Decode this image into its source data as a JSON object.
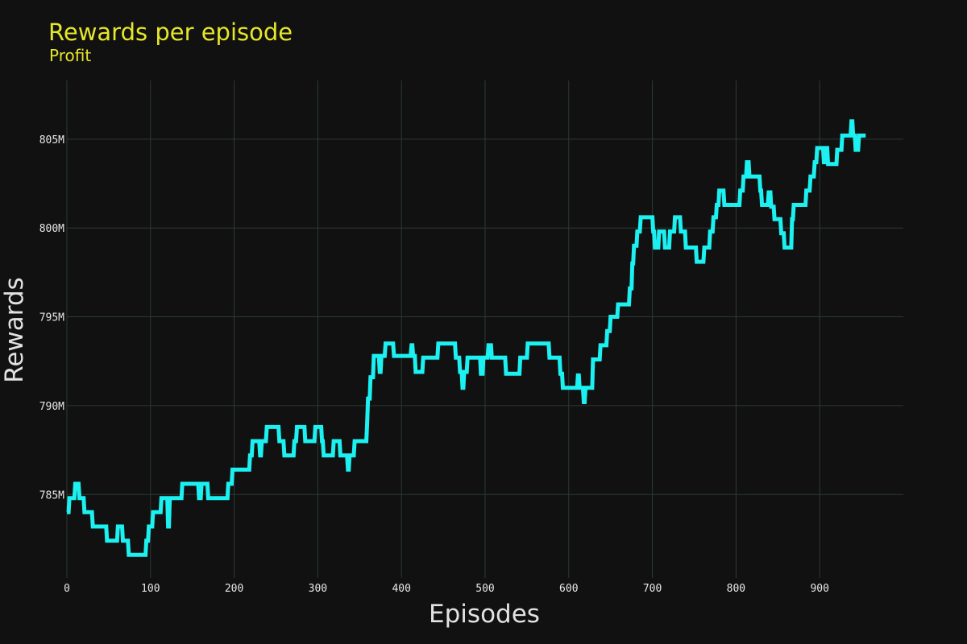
{
  "colors": {
    "background": "#111111",
    "title": "#e6e62a",
    "line": "#1cf0f0",
    "grid": "#2c3a34",
    "text": "#e8e8e8"
  },
  "chart_data": {
    "type": "line",
    "title": "Rewards per episode",
    "subtitle": "Profit",
    "xlabel": "Episodes",
    "ylabel": "Rewards",
    "xlim": [
      0,
      1000
    ],
    "ylim": [
      780.3,
      808.3
    ],
    "grid": true,
    "x_ticks": [
      {
        "value": 0,
        "label": "0"
      },
      {
        "value": 100,
        "label": "100"
      },
      {
        "value": 200,
        "label": "200"
      },
      {
        "value": 300,
        "label": "300"
      },
      {
        "value": 400,
        "label": "400"
      },
      {
        "value": 500,
        "label": "500"
      },
      {
        "value": 600,
        "label": "600"
      },
      {
        "value": 700,
        "label": "700"
      },
      {
        "value": 800,
        "label": "800"
      },
      {
        "value": 900,
        "label": "900"
      }
    ],
    "y_ticks": [
      {
        "value": 785,
        "label": "785M"
      },
      {
        "value": 790,
        "label": "790M"
      },
      {
        "value": 795,
        "label": "795M"
      },
      {
        "value": 800,
        "label": "800M"
      },
      {
        "value": 805,
        "label": "805M"
      }
    ],
    "series": [
      {
        "color": "#1cf0f0",
        "points": [
          [
            0,
            784.0
          ],
          [
            2,
            784.0
          ],
          [
            3,
            784.8
          ],
          [
            9,
            784.8
          ],
          [
            10,
            785.6
          ],
          [
            14,
            785.6
          ],
          [
            15,
            784.8
          ],
          [
            20,
            784.8
          ],
          [
            21,
            784.0
          ],
          [
            30,
            784.0
          ],
          [
            31,
            783.2
          ],
          [
            47,
            783.2
          ],
          [
            48,
            782.4
          ],
          [
            60,
            782.4
          ],
          [
            61,
            783.2
          ],
          [
            66,
            783.2
          ],
          [
            67,
            782.4
          ],
          [
            73,
            782.4
          ],
          [
            74,
            781.6
          ],
          [
            94,
            781.6
          ],
          [
            95,
            782.4
          ],
          [
            97,
            782.4
          ],
          [
            98,
            783.2
          ],
          [
            102,
            783.2
          ],
          [
            103,
            784.0
          ],
          [
            112,
            784.0
          ],
          [
            113,
            784.8
          ],
          [
            120,
            784.8
          ],
          [
            121,
            783.2
          ],
          [
            122,
            783.2
          ],
          [
            123,
            784.8
          ],
          [
            137,
            784.8
          ],
          [
            138,
            785.6
          ],
          [
            157,
            785.6
          ],
          [
            158,
            784.8
          ],
          [
            160,
            784.8
          ],
          [
            161,
            785.6
          ],
          [
            168,
            785.6
          ],
          [
            169,
            784.8
          ],
          [
            192,
            784.8
          ],
          [
            193,
            785.6
          ],
          [
            197,
            785.6
          ],
          [
            198,
            786.4
          ],
          [
            218,
            786.4
          ],
          [
            219,
            787.2
          ],
          [
            221,
            787.2
          ],
          [
            222,
            788.0
          ],
          [
            230,
            788.0
          ],
          [
            231,
            787.2
          ],
          [
            232,
            787.2
          ],
          [
            233,
            788.0
          ],
          [
            238,
            788.0
          ],
          [
            239,
            788.8
          ],
          [
            253,
            788.8
          ],
          [
            254,
            788.0
          ],
          [
            259,
            788.0
          ],
          [
            260,
            787.2
          ],
          [
            271,
            787.2
          ],
          [
            272,
            788.0
          ],
          [
            274,
            788.0
          ],
          [
            275,
            788.8
          ],
          [
            284,
            788.8
          ],
          [
            285,
            788.0
          ],
          [
            296,
            788.0
          ],
          [
            297,
            788.8
          ],
          [
            304,
            788.8
          ],
          [
            305,
            788.0
          ],
          [
            306,
            788.0
          ],
          [
            307,
            787.2
          ],
          [
            318,
            787.2
          ],
          [
            319,
            788.0
          ],
          [
            326,
            788.0
          ],
          [
            327,
            787.2
          ],
          [
            335,
            787.2
          ],
          [
            336,
            786.4
          ],
          [
            337,
            786.4
          ],
          [
            338,
            787.2
          ],
          [
            343,
            787.2
          ],
          [
            344,
            788.0
          ],
          [
            358,
            788.0
          ],
          [
            359,
            789.0
          ],
          [
            360,
            790.4
          ],
          [
            362,
            790.4
          ],
          [
            363,
            791.6
          ],
          [
            366,
            791.6
          ],
          [
            367,
            792.8
          ],
          [
            373,
            792.8
          ],
          [
            374,
            791.9
          ],
          [
            375,
            791.9
          ],
          [
            376,
            792.8
          ],
          [
            380,
            792.8
          ],
          [
            381,
            793.5
          ],
          [
            390,
            793.5
          ],
          [
            391,
            792.8
          ],
          [
            411,
            792.8
          ],
          [
            412,
            793.4
          ],
          [
            413,
            793.4
          ],
          [
            414,
            792.8
          ],
          [
            416,
            792.8
          ],
          [
            417,
            791.9
          ],
          [
            425,
            791.9
          ],
          [
            426,
            792.7
          ],
          [
            443,
            792.7
          ],
          [
            444,
            793.5
          ],
          [
            464,
            793.5
          ],
          [
            465,
            792.7
          ],
          [
            469,
            792.7
          ],
          [
            470,
            791.9
          ],
          [
            472,
            791.9
          ],
          [
            473,
            791.0
          ],
          [
            474,
            791.0
          ],
          [
            475,
            791.9
          ],
          [
            478,
            791.9
          ],
          [
            479,
            792.7
          ],
          [
            494,
            792.7
          ],
          [
            495,
            791.8
          ],
          [
            497,
            791.8
          ],
          [
            498,
            792.7
          ],
          [
            503,
            792.7
          ],
          [
            504,
            793.4
          ],
          [
            507,
            793.4
          ],
          [
            508,
            792.7
          ],
          [
            524,
            792.7
          ],
          [
            525,
            791.8
          ],
          [
            541,
            791.8
          ],
          [
            542,
            792.7
          ],
          [
            550,
            792.7
          ],
          [
            551,
            793.5
          ],
          [
            576,
            793.5
          ],
          [
            577,
            792.7
          ],
          [
            589,
            792.7
          ],
          [
            590,
            791.8
          ],
          [
            592,
            791.8
          ],
          [
            593,
            791.0
          ],
          [
            610,
            791.0
          ],
          [
            611,
            791.7
          ],
          [
            612,
            791.7
          ],
          [
            613,
            791.0
          ],
          [
            617,
            791.0
          ],
          [
            618,
            790.2
          ],
          [
            619,
            790.2
          ],
          [
            620,
            791.0
          ],
          [
            628,
            791.0
          ],
          [
            629,
            792.6
          ],
          [
            637,
            792.6
          ],
          [
            638,
            793.4
          ],
          [
            645,
            793.4
          ],
          [
            646,
            794.2
          ],
          [
            649,
            794.2
          ],
          [
            650,
            795.0
          ],
          [
            658,
            795.0
          ],
          [
            659,
            795.7
          ],
          [
            672,
            795.7
          ],
          [
            673,
            796.6
          ],
          [
            675,
            796.6
          ],
          [
            676,
            798.0
          ],
          [
            677,
            798.0
          ],
          [
            678,
            799.0
          ],
          [
            681,
            799.0
          ],
          [
            682,
            799.8
          ],
          [
            685,
            799.8
          ],
          [
            686,
            800.6
          ],
          [
            700,
            800.6
          ],
          [
            701,
            799.8
          ],
          [
            702,
            799.8
          ],
          [
            703,
            798.9
          ],
          [
            707,
            798.9
          ],
          [
            708,
            799.8
          ],
          [
            714,
            799.8
          ],
          [
            715,
            798.9
          ],
          [
            720,
            798.9
          ],
          [
            721,
            799.8
          ],
          [
            726,
            799.8
          ],
          [
            727,
            800.6
          ],
          [
            733,
            800.6
          ],
          [
            734,
            799.8
          ],
          [
            739,
            799.8
          ],
          [
            740,
            798.9
          ],
          [
            752,
            798.9
          ],
          [
            753,
            798.1
          ],
          [
            761,
            798.1
          ],
          [
            762,
            798.9
          ],
          [
            768,
            798.9
          ],
          [
            769,
            799.8
          ],
          [
            772,
            799.8
          ],
          [
            773,
            800.6
          ],
          [
            776,
            800.6
          ],
          [
            777,
            801.3
          ],
          [
            779,
            801.3
          ],
          [
            780,
            802.1
          ],
          [
            785,
            802.1
          ],
          [
            786,
            801.3
          ],
          [
            804,
            801.3
          ],
          [
            805,
            802.1
          ],
          [
            808,
            802.1
          ],
          [
            809,
            802.9
          ],
          [
            812,
            802.9
          ],
          [
            813,
            803.7
          ],
          [
            815,
            803.7
          ],
          [
            816,
            802.9
          ],
          [
            828,
            802.9
          ],
          [
            829,
            802.1
          ],
          [
            830,
            802.1
          ],
          [
            831,
            801.3
          ],
          [
            838,
            801.3
          ],
          [
            839,
            802.0
          ],
          [
            841,
            802.0
          ],
          [
            842,
            801.2
          ],
          [
            845,
            801.2
          ],
          [
            846,
            800.5
          ],
          [
            853,
            800.5
          ],
          [
            854,
            799.7
          ],
          [
            857,
            799.7
          ],
          [
            858,
            798.9
          ],
          [
            866,
            798.9
          ],
          [
            867,
            800.5
          ],
          [
            868,
            800.5
          ],
          [
            869,
            801.3
          ],
          [
            883,
            801.3
          ],
          [
            884,
            802.1
          ],
          [
            888,
            802.1
          ],
          [
            889,
            802.9
          ],
          [
            893,
            802.9
          ],
          [
            894,
            803.7
          ],
          [
            896,
            803.7
          ],
          [
            897,
            804.5
          ],
          [
            904,
            804.5
          ],
          [
            905,
            803.7
          ],
          [
            906,
            803.7
          ],
          [
            907,
            804.5
          ],
          [
            909,
            804.5
          ],
          [
            910,
            803.6
          ],
          [
            920,
            803.6
          ],
          [
            921,
            804.4
          ],
          [
            926,
            804.4
          ],
          [
            927,
            805.2
          ],
          [
            937,
            805.2
          ],
          [
            938,
            806.0
          ],
          [
            939,
            806.0
          ],
          [
            940,
            805.2
          ],
          [
            942,
            805.2
          ],
          [
            943,
            804.4
          ],
          [
            946,
            804.4
          ],
          [
            947,
            805.2
          ],
          [
            955,
            805.2
          ]
        ]
      }
    ]
  }
}
